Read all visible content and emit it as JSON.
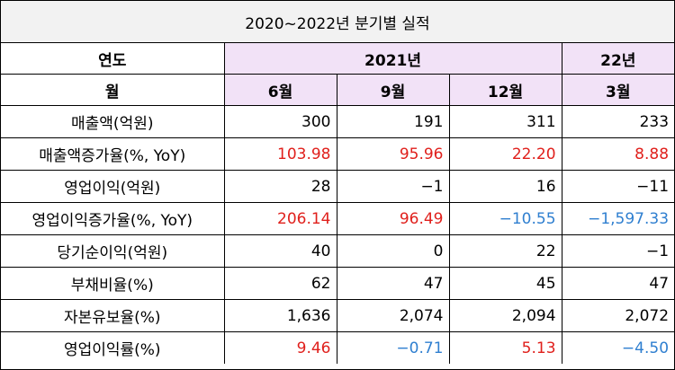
{
  "title": "2020~2022년 분기별 실적",
  "header": {
    "year_label": "연도",
    "year_2021": "2021년",
    "year_22": "22년",
    "month_label": "월",
    "months": [
      "6월",
      "9월",
      "12월",
      "3월"
    ]
  },
  "rows": [
    {
      "label": "매출액(억원)",
      "values": [
        "300",
        "191",
        "311",
        "233"
      ],
      "color": "black"
    },
    {
      "label": "매출액증가율(%, YoY)",
      "values": [
        "103.98",
        "95.96",
        "22.20",
        "8.88"
      ],
      "color": "red"
    },
    {
      "label": "영업이익(억원)",
      "values": [
        "28",
        "−1",
        "16",
        "−11"
      ],
      "color": "black"
    },
    {
      "label": "영업이익증가율(%, YoY)",
      "values": [
        "206.14",
        "96.49",
        "−10.55",
        "−1,597.33"
      ],
      "color": "mixed"
    },
    {
      "label": "당기순이익(억원)",
      "values": [
        "40",
        "0",
        "22",
        "−1"
      ],
      "color": "black"
    },
    {
      "label": "부채비율(%)",
      "values": [
        "62",
        "47",
        "45",
        "47"
      ],
      "color": "black"
    },
    {
      "label": "자본유보율(%)",
      "values": [
        "1,636",
        "2,074",
        "2,094",
        "2,072"
      ],
      "color": "black"
    },
    {
      "label": "영업이익률(%)",
      "values": [
        "9.46",
        "−0.71",
        "5.13",
        "−4.50"
      ],
      "color": "mixed"
    }
  ],
  "colors": {
    "positive": "#e0201c",
    "negative": "#2f7fd0",
    "header_fill": "#f2e2f7",
    "title_fill": "#f2f2f2"
  }
}
